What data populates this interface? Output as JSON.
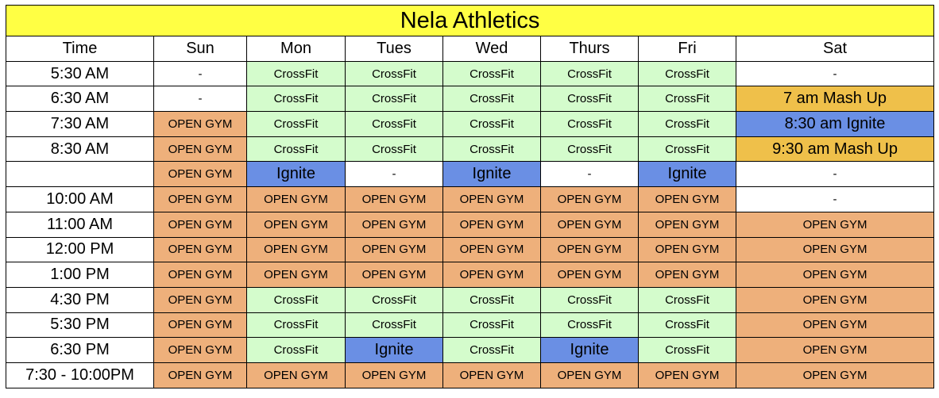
{
  "title": "Nela Athletics",
  "columns": [
    "Time",
    "Sun",
    "Mon",
    "Tues",
    "Wed",
    "Thurs",
    "Fri",
    "Sat"
  ],
  "colors": {
    "title_bg": "#ffff44",
    "crossfit": "#d4fccc",
    "open_gym": "#eeb07b",
    "ignite": "#6a8fe4",
    "mash_up": "#efc04a",
    "empty": "#ffffff"
  },
  "rows": [
    {
      "time": "5:30 AM",
      "cells": [
        "-",
        "CrossFit",
        "CrossFit",
        "CrossFit",
        "CrossFit",
        "CrossFit",
        "-"
      ]
    },
    {
      "time": "6:30 AM",
      "cells": [
        "-",
        "CrossFit",
        "CrossFit",
        "CrossFit",
        "CrossFit",
        "CrossFit",
        "7 am Mash Up"
      ]
    },
    {
      "time": "7:30 AM",
      "cells": [
        "OPEN GYM",
        "CrossFit",
        "CrossFit",
        "CrossFit",
        "CrossFit",
        "CrossFit",
        "8:30 am Ignite"
      ]
    },
    {
      "time": "8:30 AM",
      "cells": [
        "OPEN GYM",
        "CrossFit",
        "CrossFit",
        "CrossFit",
        "CrossFit",
        "CrossFit",
        "9:30 am Mash Up"
      ]
    },
    {
      "time": "",
      "cells": [
        "OPEN GYM",
        "Ignite",
        "-",
        "Ignite",
        "-",
        "Ignite",
        "-"
      ]
    },
    {
      "time": "10:00 AM",
      "cells": [
        "OPEN GYM",
        "OPEN GYM",
        "OPEN GYM",
        "OPEN GYM",
        "OPEN GYM",
        "OPEN GYM",
        "-"
      ]
    },
    {
      "time": "11:00 AM",
      "cells": [
        "OPEN GYM",
        "OPEN GYM",
        "OPEN GYM",
        "OPEN GYM",
        "OPEN GYM",
        "OPEN GYM",
        "OPEN GYM"
      ]
    },
    {
      "time": "12:00 PM",
      "cells": [
        "OPEN GYM",
        "OPEN GYM",
        "OPEN GYM",
        "OPEN GYM",
        "OPEN GYM",
        "OPEN GYM",
        "OPEN GYM"
      ]
    },
    {
      "time": "1:00 PM",
      "cells": [
        "OPEN GYM",
        "OPEN GYM",
        "OPEN GYM",
        "OPEN GYM",
        "OPEN GYM",
        "OPEN GYM",
        "OPEN GYM"
      ]
    },
    {
      "time": "4:30 PM",
      "cells": [
        "OPEN GYM",
        "CrossFit",
        "CrossFit",
        "CrossFit",
        "CrossFit",
        "CrossFit",
        "OPEN GYM"
      ]
    },
    {
      "time": "5:30 PM",
      "cells": [
        "OPEN GYM",
        "CrossFit",
        "CrossFit",
        "CrossFit",
        "CrossFit",
        "CrossFit",
        "OPEN GYM"
      ]
    },
    {
      "time": "6:30 PM",
      "cells": [
        "OPEN GYM",
        "CrossFit",
        "Ignite",
        "CrossFit",
        "Ignite",
        "CrossFit",
        "OPEN GYM"
      ]
    },
    {
      "time": "7:30 - 10:00PM",
      "cells": [
        "OPEN GYM",
        "OPEN GYM",
        "OPEN GYM",
        "OPEN GYM",
        "OPEN GYM",
        "OPEN GYM",
        "OPEN GYM"
      ]
    }
  ]
}
